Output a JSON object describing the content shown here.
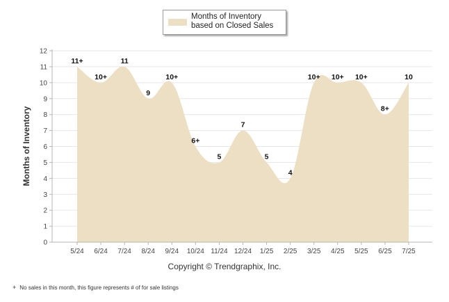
{
  "legend": {
    "label": "Months of Inventory based on Closed Sales"
  },
  "copyright": "Copyright © Trendgraphix, Inc.",
  "footnote": {
    "symbol": "+",
    "text": "No sales in this month, this figure represents # of for sale listings"
  },
  "colors": {
    "area": "#ecdfc3",
    "grid": "#e6e6e6",
    "axis": "#b5b5b5"
  },
  "chart_data": {
    "type": "area",
    "ylabel": "Months of Inventory",
    "ylim": [
      0,
      12
    ],
    "yticks": [
      "0",
      "1",
      "2",
      "3",
      "4",
      "5",
      "6",
      "7",
      "8",
      "9",
      "10",
      "11",
      "12"
    ],
    "categories": [
      "5/24",
      "6/24",
      "7/24",
      "8/24",
      "9/24",
      "10/24",
      "11/24",
      "12/24",
      "1/25",
      "2/25",
      "3/25",
      "4/25",
      "5/25",
      "6/25",
      "7/25"
    ],
    "values": [
      11,
      10,
      11,
      9,
      10,
      6,
      5,
      7,
      5,
      4,
      10,
      10,
      10,
      8,
      10
    ],
    "value_labels": [
      "11+",
      "10+",
      "11",
      "9",
      "10+",
      "6+",
      "5",
      "7",
      "5",
      "4",
      "10+",
      "10+",
      "10+",
      "8+",
      "10"
    ],
    "grid": true,
    "legend_position": "top-center"
  }
}
